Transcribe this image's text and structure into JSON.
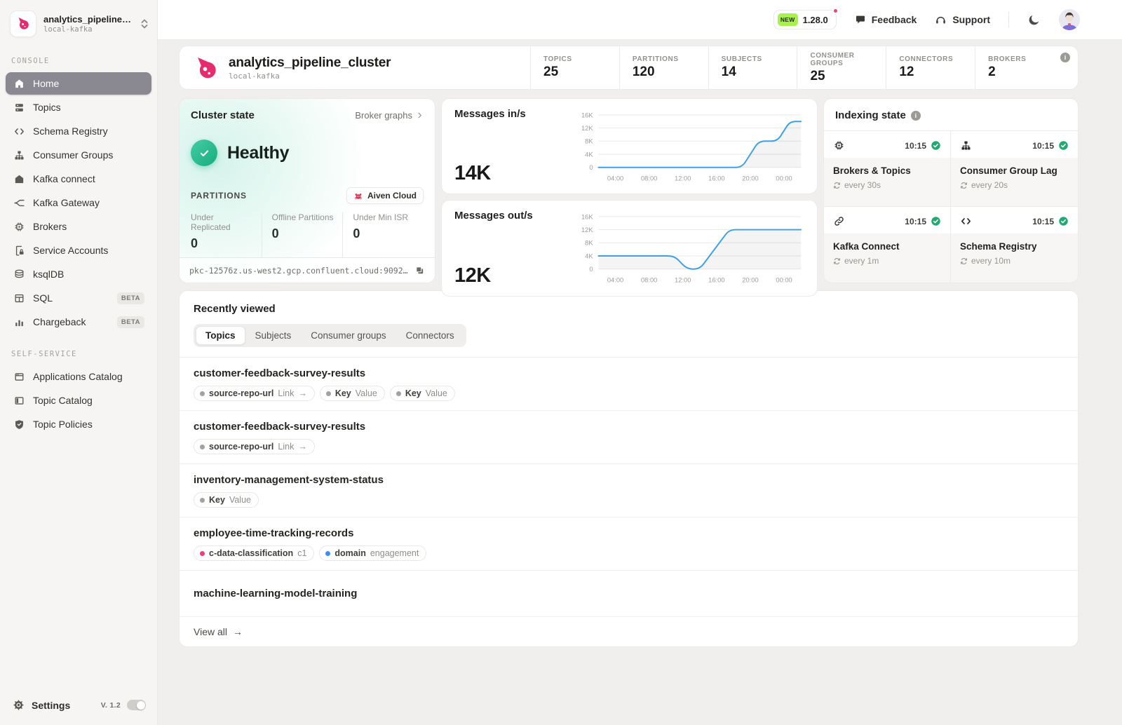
{
  "colors": {
    "brand_pink": "#e62c6d",
    "chart_line_blue": "#3ba0e8",
    "healthy_green": "#1cae7e",
    "new_badge_green": "#a8f04c",
    "notification_pink": "#f0437d",
    "tag_dot_gray": "#a3a29d",
    "tag_dot_pink": "#ee3d77",
    "tag_dot_blue": "#3d8df5"
  },
  "sidebar": {
    "workspace": {
      "name": "analytics_pipeline_cl…",
      "env": "local-kafka"
    },
    "console": {
      "label": "CONSOLE",
      "items": [
        {
          "label": "Home",
          "active": true
        },
        {
          "label": "Topics"
        },
        {
          "label": "Schema Registry"
        },
        {
          "label": "Consumer Groups"
        },
        {
          "label": "Kafka connect"
        },
        {
          "label": "Kafka Gateway"
        },
        {
          "label": "Brokers"
        },
        {
          "label": "Service Accounts"
        },
        {
          "label": "ksqlDB"
        },
        {
          "label": "SQL",
          "badge": "BETA"
        },
        {
          "label": "Chargeback",
          "badge": "BETA"
        }
      ]
    },
    "self_service": {
      "label": "SELF-SERVICE",
      "items": [
        {
          "label": "Applications Catalog"
        },
        {
          "label": "Topic Catalog"
        },
        {
          "label": "Topic Policies"
        }
      ]
    },
    "footer": {
      "settings": "Settings",
      "version": "V. 1.2"
    }
  },
  "topbar": {
    "version": {
      "badge": "NEW",
      "number": "1.28.0"
    },
    "feedback": "Feedback",
    "support": "Support"
  },
  "cluster": {
    "name": "analytics_pipeline_cluster",
    "env": "local-kafka",
    "stats": [
      {
        "label": "TOPICS",
        "value": "25"
      },
      {
        "label": "PARTITIONS",
        "value": "120"
      },
      {
        "label": "SUBJECTS",
        "value": "14"
      },
      {
        "label": "CONSUMER GROUPS",
        "value": "25"
      },
      {
        "label": "CONNECTORS",
        "value": "12"
      },
      {
        "label": "BROKERS",
        "value": "2"
      }
    ]
  },
  "cluster_state": {
    "title": "Cluster state",
    "broker_graphs_link": "Broker graphs",
    "status": "Healthy",
    "partitions_label": "PARTITIONS",
    "provider_badge": "Aiven Cloud",
    "stats": [
      {
        "label": "Under Replicated",
        "value": "0"
      },
      {
        "label": "Offline Partitions",
        "value": "0"
      },
      {
        "label": "Under Min ISR",
        "value": "0"
      }
    ],
    "bootstrap_url": "pkc-12576z.us-west2.gcp.confluent.cloud:9092.lor…"
  },
  "chart_data": [
    {
      "type": "line",
      "title": "Messages in/s",
      "current_value": "14K",
      "yticks": [
        "16K",
        "12K",
        "8K",
        "4K",
        "0"
      ],
      "ytick_values": [
        16000,
        12000,
        8000,
        4000,
        0
      ],
      "ylim": [
        0,
        16000
      ],
      "xticks": [
        "04:00",
        "08:00",
        "12:00",
        "16:00",
        "20:00",
        "00:00"
      ],
      "xtick_hours": [
        4,
        8,
        12,
        16,
        20,
        24
      ],
      "x_range_hours": [
        2,
        26
      ],
      "grid": true,
      "line_color": "#3ba0e8",
      "series": [
        {
          "name": "messages_in_per_sec",
          "points": [
            [
              2,
              0
            ],
            [
              19,
              0
            ],
            [
              21,
              8000
            ],
            [
              23.2,
              8000
            ],
            [
              24.7,
              14000
            ],
            [
              26,
              14000
            ]
          ]
        }
      ]
    },
    {
      "type": "line",
      "title": "Messages out/s",
      "current_value": "12K",
      "yticks": [
        "16K",
        "12K",
        "8K",
        "4K",
        "0"
      ],
      "ytick_values": [
        16000,
        12000,
        8000,
        4000,
        0
      ],
      "ylim": [
        0,
        16000
      ],
      "xticks": [
        "04:00",
        "08:00",
        "12:00",
        "16:00",
        "20:00",
        "00:00"
      ],
      "xtick_hours": [
        4,
        8,
        12,
        16,
        20,
        24
      ],
      "x_range_hours": [
        2,
        26
      ],
      "grid": true,
      "line_color": "#3ba0e8",
      "series": [
        {
          "name": "messages_out_per_sec",
          "points": [
            [
              2,
              4000
            ],
            [
              11,
              4000
            ],
            [
              12.5,
              0
            ],
            [
              14,
              0
            ],
            [
              17.5,
              12000
            ],
            [
              26,
              12000
            ]
          ]
        }
      ]
    }
  ],
  "indexing": {
    "title": "Indexing state",
    "cells": [
      {
        "name": "Brokers & Topics",
        "time": "10:15",
        "interval": "every 30s"
      },
      {
        "name": "Consumer Group Lag",
        "time": "10:15",
        "interval": "every 20s"
      },
      {
        "name": "Kafka Connect",
        "time": "10:15",
        "interval": "every 1m"
      },
      {
        "name": "Schema Registry",
        "time": "10:15",
        "interval": "every 10m"
      }
    ]
  },
  "recent": {
    "title": "Recently viewed",
    "tabs": [
      "Topics",
      "Subjects",
      "Consumer groups",
      "Connectors"
    ],
    "active_tab": "Topics",
    "rows": [
      {
        "name": "customer-feedback-survey-results",
        "badges": [
          {
            "dot": "#a3a29d",
            "key": "source-repo-url",
            "value": "Link",
            "arrow": "→"
          },
          {
            "dot": "#a3a29d",
            "key": "Key",
            "value": "Value"
          },
          {
            "dot": "#a3a29d",
            "key": "Key",
            "value": "Value"
          }
        ]
      },
      {
        "name": "customer-feedback-survey-results",
        "badges": [
          {
            "dot": "#a3a29d",
            "key": "source-repo-url",
            "value": "Link",
            "arrow": "→"
          }
        ]
      },
      {
        "name": "inventory-management-system-status",
        "badges": [
          {
            "dot": "#a3a29d",
            "key": "Key",
            "value": "Value"
          }
        ]
      },
      {
        "name": "employee-time-tracking-records",
        "badges": [
          {
            "dot": "#ee3d77",
            "key": "c-data-classification",
            "value": "c1"
          },
          {
            "dot": "#3d8df5",
            "key": "domain",
            "value": "engagement"
          }
        ]
      },
      {
        "name": "machine-learning-model-training",
        "badges": []
      }
    ],
    "view_all": "View all",
    "view_all_arrow": "→"
  },
  "misc": {
    "chevron": "›",
    "arrow": "→"
  }
}
